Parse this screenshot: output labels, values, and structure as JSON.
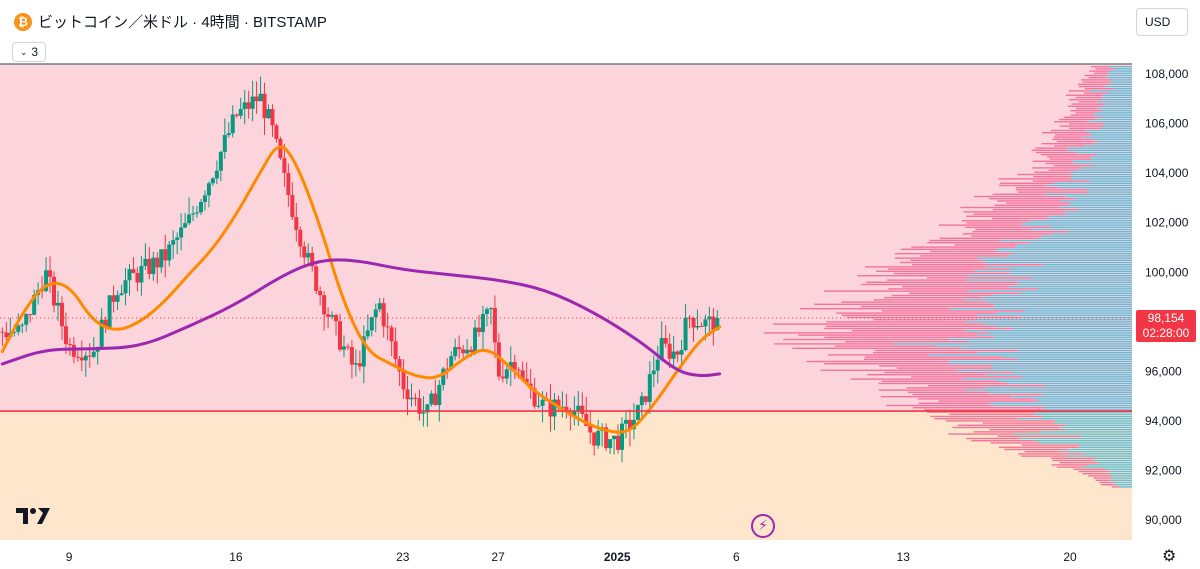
{
  "header": {
    "symbol_icon": "bitcoin-icon",
    "symbol_glyph": "₿",
    "title": "ビットコイン／米ドル · 4時間 · BITSTAMP",
    "indicator_count": "3",
    "currency": "USD"
  },
  "price_badge": {
    "price": "98,154",
    "countdown": "02:28:00",
    "color": "#f23645"
  },
  "colors": {
    "upper_zone": "#fcd5dc",
    "lower_zone": "#fde6cb",
    "up_candle": "#089981",
    "down_candle": "#f23645",
    "ema_short": "#ff8a00",
    "ema_long": "#9c27b0",
    "support_line": "#f23645",
    "vp_up": "#4db6d6",
    "vp_down": "#f06292"
  },
  "chart_data": {
    "type": "candlestick",
    "title": "",
    "y_axis": {
      "ticks": [
        90000,
        92000,
        94000,
        96000,
        98000,
        100000,
        102000,
        104000,
        106000,
        108000
      ],
      "tick_labels": [
        "90,000",
        "92,000",
        "94,000",
        "96,000",
        "98,000",
        "100,000",
        "102,000",
        "104,000",
        "106,000",
        "108,000"
      ],
      "range": [
        89200,
        108400
      ]
    },
    "x_axis": {
      "tick_labels": [
        "9",
        "16",
        "23",
        "27",
        "2025",
        "6",
        "13",
        "20"
      ],
      "tick_days": [
        9,
        16,
        23,
        27,
        32,
        37,
        44,
        51
      ],
      "range_days": [
        6.1,
        53.6
      ]
    },
    "support_level": 94400,
    "current_price": 98154,
    "ohlc_keypoints": [
      [
        7,
        97600
      ],
      [
        8,
        100000
      ],
      [
        9,
        97000
      ],
      [
        10,
        96800
      ],
      [
        11,
        99400
      ],
      [
        13,
        100600
      ],
      [
        14,
        102000
      ],
      [
        15,
        104000
      ],
      [
        16,
        106300
      ],
      [
        17,
        107100
      ],
      [
        17.5,
        105800
      ],
      [
        18,
        103800
      ],
      [
        19,
        100500
      ],
      [
        20,
        98000
      ],
      [
        21,
        96000
      ],
      [
        22,
        98800
      ],
      [
        23,
        95500
      ],
      [
        24,
        94200
      ],
      [
        25,
        96600
      ],
      [
        26,
        97300
      ],
      [
        26.7,
        98400
      ],
      [
        27,
        95900
      ],
      [
        27.8,
        96600
      ],
      [
        28,
        95600
      ],
      [
        29,
        94500
      ],
      [
        30,
        94700
      ],
      [
        31,
        93400
      ],
      [
        32,
        93200
      ],
      [
        33,
        94500
      ],
      [
        33.8,
        97000
      ],
      [
        34.5,
        96700
      ],
      [
        35,
        98200
      ],
      [
        35.8,
        97900
      ],
      [
        36.3,
        98154
      ]
    ],
    "series": [
      {
        "x": [
          6.2,
          7,
          8,
          9,
          10,
          11,
          12,
          13,
          14,
          15,
          16,
          17,
          17.8,
          18.5,
          19.5,
          20.5,
          21.5,
          22.5,
          23.5,
          24.5,
          25.5,
          26.5,
          27.5,
          28.5,
          29.5,
          30.5,
          31.5,
          32.5,
          33.5,
          34.5,
          35.5,
          36.3
        ],
        "y": [
          96800,
          98300,
          99600,
          99500,
          98000,
          97600,
          98000,
          98800,
          99900,
          100900,
          102300,
          104000,
          105300,
          104500,
          102000,
          98800,
          96800,
          96300,
          95800,
          95700,
          96500,
          97000,
          96200,
          95200,
          94600,
          94000,
          93600,
          93500,
          94600,
          96000,
          97300,
          97800
        ]
      },
      {
        "x": [
          6.2,
          8,
          10,
          12,
          14,
          16,
          18,
          19.5,
          21,
          23,
          25,
          27,
          29,
          31,
          33,
          34.5,
          35.5,
          36.3
        ],
        "y": [
          96300,
          96900,
          96900,
          97000,
          97800,
          98700,
          99900,
          100500,
          100500,
          100100,
          99900,
          99700,
          99300,
          98400,
          97200,
          96000,
          95800,
          95900
        ]
      }
    ],
    "annotations": []
  }
}
